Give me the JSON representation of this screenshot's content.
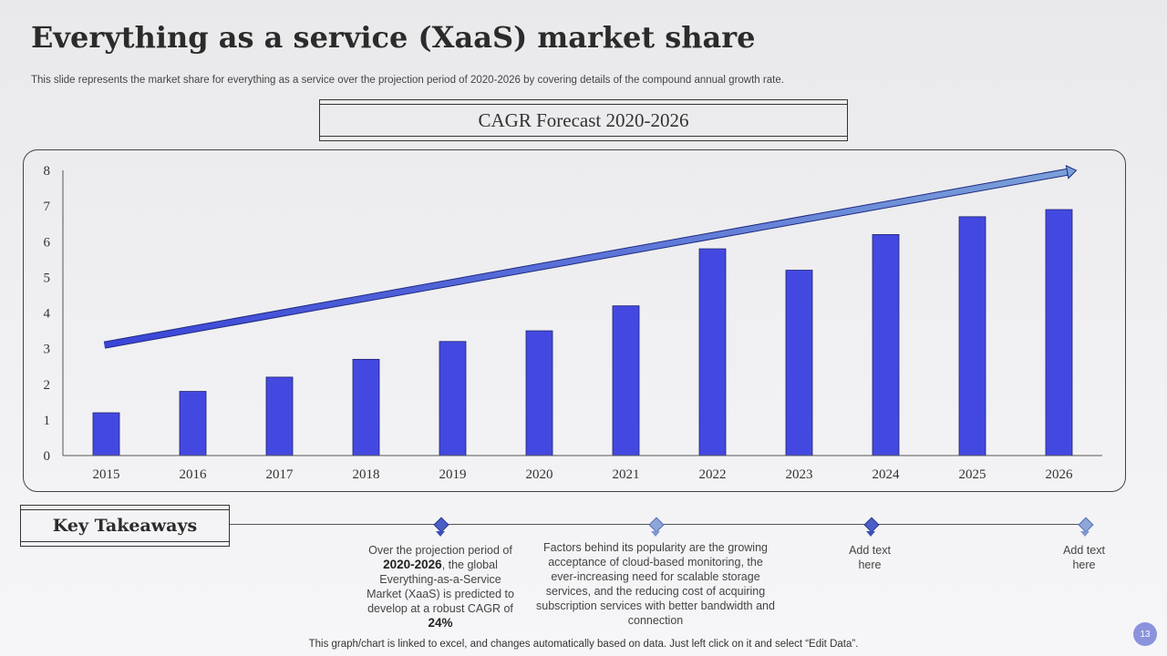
{
  "slide": {
    "title": "Everything as a service (XaaS) market share",
    "subtitle": "This slide represents the market share for everything as a service over the projection period of 2020-2026 by covering details of the compound annual growth rate.",
    "footnote": "This graph/chart is linked to excel, and changes automatically based on data. Just left click on it and select “Edit Data”.",
    "page_number": "13"
  },
  "chart_data": {
    "type": "bar",
    "title": "CAGR Forecast 2020-2026",
    "categories": [
      "2015",
      "2016",
      "2017",
      "2018",
      "2019",
      "2020",
      "2021",
      "2022",
      "2023",
      "2024",
      "2025",
      "2026"
    ],
    "values": [
      1.2,
      1.8,
      2.2,
      2.7,
      3.2,
      3.5,
      4.2,
      5.8,
      5.2,
      6.2,
      6.7,
      6.9
    ],
    "ylim": [
      0,
      8
    ],
    "yticks": [
      "0",
      "1",
      "2",
      "3",
      "4",
      "5",
      "6",
      "7",
      "8"
    ],
    "xlabel": "",
    "ylabel": "",
    "bar_color": "#4349e0",
    "trend_arrow": {
      "start_value": 3.1,
      "end_value": 8.0,
      "color_start": "#3a44d8",
      "color_end": "#7aa0d8"
    }
  },
  "takeaways": {
    "heading": "Key Takeaways",
    "item1": {
      "pre": "Over the projection period of",
      "years": "2020-2026",
      "mid": ", the global Everything-as-a-Service Market (XaaS) is predicted to develop at a robust CAGR of",
      "cagr": "24%"
    },
    "item2": "Factors behind its popularity are the growing acceptance of cloud-based monitoring, the ever-increasing need for scalable storage services, and the reducing cost of acquiring subscription services with better bandwidth and connection",
    "item3": "Add text here",
    "item4": "Add text here"
  }
}
